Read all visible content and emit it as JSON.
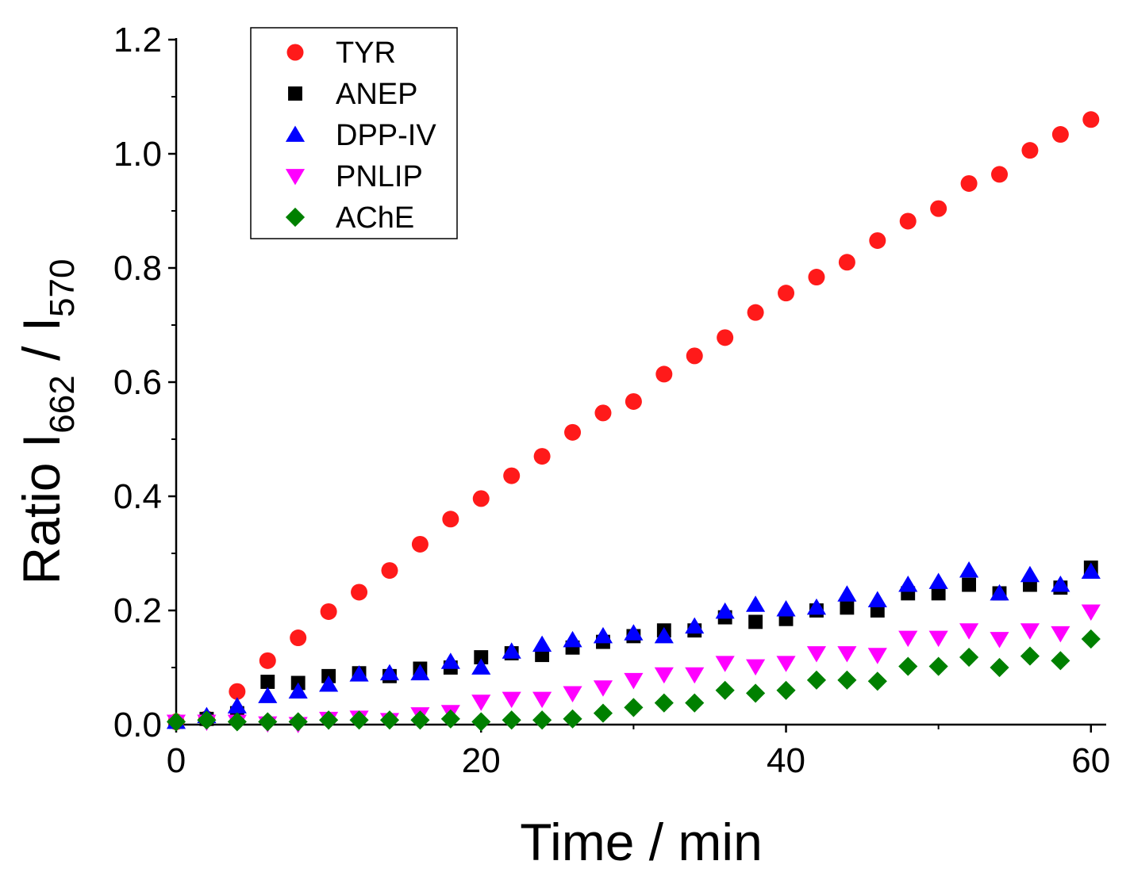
{
  "chart_data": {
    "type": "scatter",
    "title": "",
    "xlabel": "Time / min",
    "ylabel": {
      "base": "Ratio I",
      "sub1": "662",
      "mid": " / I",
      "sub2": "570"
    },
    "xlim": [
      0,
      61
    ],
    "ylim": [
      0,
      1.2
    ],
    "xticks": [
      0,
      20,
      40,
      60
    ],
    "xtick_labels": [
      "0",
      "20",
      "40",
      "60"
    ],
    "yticks": [
      0,
      0.2,
      0.4,
      0.6,
      0.8,
      1.0,
      1.2
    ],
    "ytick_labels": [
      "0.0",
      "0.2",
      "0.4",
      "0.6",
      "0.8",
      "1.0",
      "1.2"
    ],
    "grid": false,
    "legend_position": "top-left",
    "x": [
      0,
      2,
      4,
      6,
      8,
      10,
      12,
      14,
      16,
      18,
      20,
      22,
      24,
      26,
      28,
      30,
      32,
      34,
      36,
      38,
      40,
      42,
      44,
      46,
      48,
      50,
      52,
      54,
      56,
      58,
      60
    ],
    "series": [
      {
        "name": "TYR",
        "marker": "circle",
        "color": "#ff1a1a",
        "values": [
          0.005,
          0.01,
          0.058,
          0.112,
          0.152,
          0.198,
          0.232,
          0.27,
          0.316,
          0.36,
          0.396,
          0.436,
          0.47,
          0.512,
          0.546,
          0.566,
          0.614,
          0.646,
          0.678,
          0.722,
          0.756,
          0.784,
          0.81,
          0.848,
          0.882,
          0.904,
          0.948,
          0.964,
          1.006,
          1.034,
          1.06
        ]
      },
      {
        "name": "ANEP",
        "marker": "square",
        "color": "#000000",
        "values": [
          0.005,
          0.01,
          0.02,
          0.075,
          0.073,
          0.085,
          0.09,
          0.085,
          0.098,
          0.1,
          0.118,
          0.125,
          0.122,
          0.135,
          0.145,
          0.155,
          0.165,
          0.165,
          0.188,
          0.18,
          0.185,
          0.2,
          0.205,
          0.2,
          0.23,
          0.23,
          0.245,
          0.23,
          0.245,
          0.24,
          0.275
        ]
      },
      {
        "name": "DPP-IV",
        "marker": "triangle-up",
        "color": "#0000ff",
        "values": [
          0.005,
          0.015,
          0.032,
          0.05,
          0.058,
          0.07,
          0.088,
          0.09,
          0.09,
          0.11,
          0.1,
          0.128,
          0.14,
          0.148,
          0.155,
          0.16,
          0.155,
          0.172,
          0.198,
          0.21,
          0.202,
          0.205,
          0.228,
          0.218,
          0.245,
          0.25,
          0.27,
          0.23,
          0.262,
          0.245,
          0.268
        ]
      },
      {
        "name": "PNLIP",
        "marker": "triangle-down",
        "color": "#ff00ff",
        "values": [
          0.005,
          0.005,
          0.005,
          0.002,
          0.001,
          0.01,
          0.012,
          0.008,
          0.018,
          0.022,
          0.04,
          0.045,
          0.045,
          0.055,
          0.065,
          0.078,
          0.088,
          0.088,
          0.108,
          0.102,
          0.108,
          0.125,
          0.125,
          0.122,
          0.152,
          0.152,
          0.165,
          0.15,
          0.165,
          0.16,
          0.198
        ]
      },
      {
        "name": "AChE",
        "marker": "diamond",
        "color": "#008000",
        "values": [
          0.005,
          0.008,
          0.005,
          0.005,
          0.005,
          0.008,
          0.008,
          0.008,
          0.008,
          0.01,
          0.005,
          0.008,
          0.008,
          0.01,
          0.02,
          0.03,
          0.038,
          0.038,
          0.06,
          0.055,
          0.06,
          0.078,
          0.078,
          0.076,
          0.102,
          0.102,
          0.118,
          0.1,
          0.12,
          0.112,
          0.15
        ]
      }
    ]
  }
}
